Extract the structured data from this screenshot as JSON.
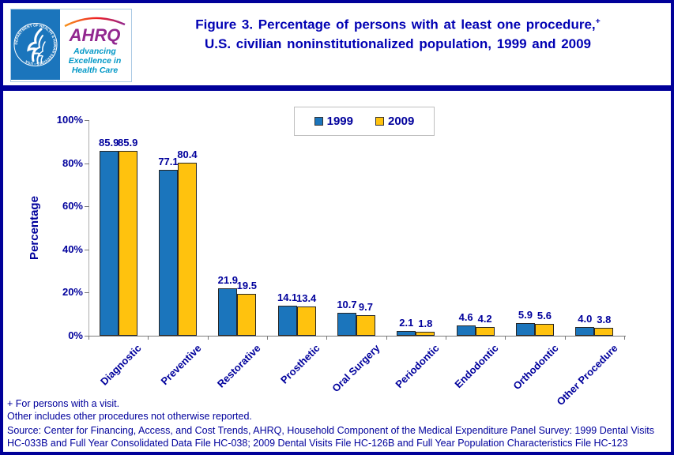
{
  "header": {
    "title_line1": "Figure 3. Percentage of persons with at least one procedure,",
    "title_sup": "+",
    "title_line2": "U.S. civilian noninstitutionalized population, 1999 and 2009",
    "logo": {
      "hhs_seal_text": "DEPARTMENT OF HEALTH & HUMAN SERVICES • USA",
      "ahrq_acronym": "AHRQ",
      "tagline_line1": "Advancing",
      "tagline_line2": "Excellence in",
      "tagline_line3": "Health Care"
    }
  },
  "chart_data": {
    "type": "bar",
    "title": "Figure 3. Percentage of persons with at least one procedure, U.S. civilian noninstitutionalized population, 1999 and 2009",
    "categories": [
      "Diagnostic",
      "Preventive",
      "Restorative",
      "Prosthetic",
      "Oral Surgery",
      "Periodontic",
      "Endodontic",
      "Orthodontic",
      "Other Procedure"
    ],
    "series": [
      {
        "name": "1999",
        "color": "#1B75BC",
        "values": [
          85.9,
          77.1,
          21.9,
          14.1,
          10.7,
          2.1,
          4.6,
          5.9,
          4.0
        ]
      },
      {
        "name": "2009",
        "color": "#FFC20E",
        "values": [
          85.9,
          80.4,
          19.5,
          13.4,
          9.7,
          1.8,
          4.2,
          5.6,
          3.8
        ]
      }
    ],
    "xlabel": "",
    "ylabel": "Percentage",
    "y_ticks": [
      "0%",
      "20%",
      "40%",
      "60%",
      "80%",
      "100%"
    ],
    "ylim": [
      0,
      100
    ],
    "grid": false,
    "legend_position": "top-center",
    "value_labels": true
  },
  "footnotes": {
    "note1": "+ For persons with a visit.",
    "note2": "Other includes other procedures not otherwise reported.",
    "source_line1": "Source: Center for Financing, Access, and Cost Trends, AHRQ, Household Component of the Medical Expenditure Panel Survey:  1999 Dental Visits",
    "source_line2": "HC-033B and Full Year Consolidated Data File HC-038; 2009 Dental Visits File HC-126B and Full Year Population Characteristics File HC-123"
  },
  "colors": {
    "border_navy": "#000099",
    "title_blue": "#0000B3",
    "text_navy": "#00009C",
    "bar_1999": "#1B75BC",
    "bar_2009": "#FFC20E",
    "hhs_logo_blue": "#1B75BC",
    "ahrq_purple": "#92278F",
    "ahrq_teal": "#0097C6"
  }
}
